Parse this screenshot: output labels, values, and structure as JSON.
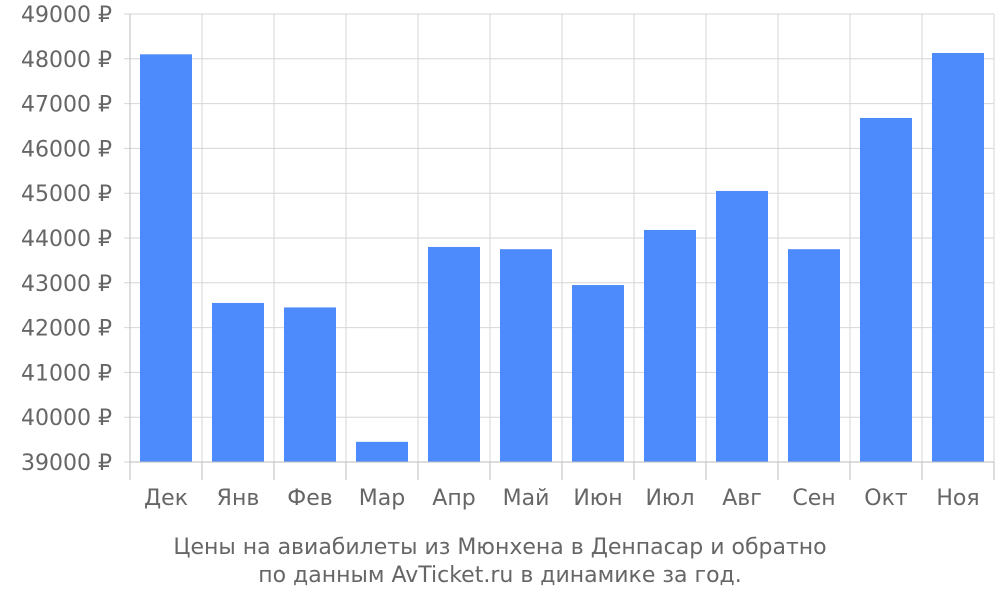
{
  "chart_data": {
    "type": "bar",
    "title": "Цены на авиабилеты из Мюнхена в Денпасар и обратно",
    "subtitle": "по данным AvTicket.ru в динамике за год.",
    "xlabel": "",
    "ylabel": "",
    "y_unit": "₽",
    "ylim": [
      39000,
      49000
    ],
    "y_ticks": [
      39000,
      40000,
      41000,
      42000,
      43000,
      44000,
      45000,
      46000,
      47000,
      48000,
      49000
    ],
    "grid": true,
    "legend": "none",
    "bar_color": "#4d8afc",
    "categories": [
      "Дек",
      "Янв",
      "Фев",
      "Мар",
      "Апр",
      "Май",
      "Июн",
      "Июл",
      "Авг",
      "Сен",
      "Окт",
      "Ноя"
    ],
    "values": [
      48100,
      42550,
      42450,
      39450,
      43800,
      43750,
      42950,
      44180,
      45050,
      43750,
      46680,
      48130
    ]
  }
}
